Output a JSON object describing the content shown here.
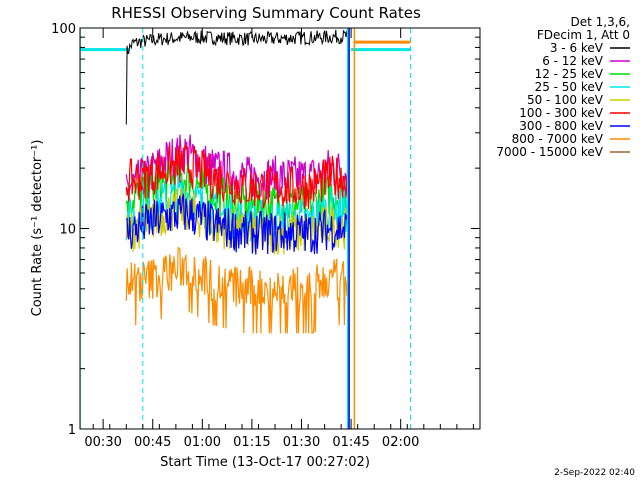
{
  "chart_data": {
    "type": "line",
    "title": "RHESSI Observing Summary Count Rates",
    "xlabel": "Start Time (13-Oct-17 00:27:02)",
    "ylabel": "Count Rate (s⁻¹ detector⁻¹)",
    "ylim": [
      1,
      100
    ],
    "y_scale": "log",
    "xlim_minutes": [
      -4,
      117
    ],
    "x_ticks": [
      {
        "label": "00:30",
        "minute": 3
      },
      {
        "label": "00:45",
        "minute": 18
      },
      {
        "label": "01:00",
        "minute": 33
      },
      {
        "label": "01:15",
        "minute": 48
      },
      {
        "label": "01:30",
        "minute": 63
      },
      {
        "label": "01:45",
        "minute": 78
      },
      {
        "label": "02:00",
        "minute": 93
      }
    ],
    "y_ticks": [
      {
        "label": "1",
        "value": 1
      },
      {
        "label": "10",
        "value": 10
      },
      {
        "label": "100",
        "value": 100
      }
    ],
    "legend": {
      "placement": "outside-right",
      "header": [
        "Det 1,3,6,",
        "FDecim 1, Att 0"
      ]
    },
    "series": [
      {
        "name": "3 - 6 keV",
        "color": "#000000",
        "x": [
          10,
          12,
          20,
          30,
          40,
          50,
          60,
          70,
          77
        ],
        "y": [
          75,
          84,
          88,
          90,
          89,
          88,
          89,
          90,
          91
        ]
      },
      {
        "name": "6 - 12 keV",
        "color": "#cc00cc",
        "x": [
          10,
          16,
          22,
          28,
          36,
          46,
          56,
          66,
          72,
          77
        ],
        "y": [
          16,
          18,
          22,
          24,
          20,
          18,
          18,
          18,
          20,
          19
        ]
      },
      {
        "name": "12 - 25 keV",
        "color": "#00dd00",
        "x": [
          10,
          16,
          22,
          28,
          36,
          46,
          56,
          66,
          72,
          77
        ],
        "y": [
          14,
          15,
          17,
          18,
          15,
          13,
          13,
          13,
          15,
          14
        ]
      },
      {
        "name": "25 - 50 keV",
        "color": "#00e5e5",
        "x": [
          10,
          16,
          22,
          28,
          36,
          46,
          56,
          66,
          72,
          77
        ],
        "y": [
          11,
          12,
          14,
          15,
          12,
          11,
          11,
          11,
          13,
          12
        ]
      },
      {
        "name": "50 - 100 keV",
        "color": "#cccc00",
        "x": [
          10,
          16,
          22,
          28,
          36,
          46,
          56,
          66,
          72,
          77
        ],
        "y": [
          9.5,
          10.5,
          12,
          12.5,
          10.5,
          9.5,
          9.5,
          9.5,
          10.5,
          10
        ]
      },
      {
        "name": "100 - 300 keV",
        "color": "#ff0000",
        "x": [
          10,
          16,
          22,
          28,
          36,
          46,
          56,
          66,
          72,
          77
        ],
        "y": [
          17,
          18,
          20,
          21,
          18,
          16,
          16,
          16,
          18,
          18
        ]
      },
      {
        "name": "300 - 800 keV",
        "color": "#0000ff",
        "x": [
          10,
          16,
          22,
          28,
          36,
          46,
          56,
          66,
          72,
          77
        ],
        "y": [
          9.5,
          10.5,
          11.5,
          12,
          10.5,
          9.5,
          9.5,
          9.5,
          10,
          10
        ]
      },
      {
        "name": "800 - 7000 keV",
        "color": "#ff8c00",
        "x": [
          10,
          16,
          22,
          28,
          36,
          46,
          56,
          66,
          72,
          77
        ],
        "y": [
          5.5,
          5.5,
          6,
          6.5,
          5.5,
          5,
          5,
          5,
          5.5,
          5.5
        ]
      },
      {
        "name": "7000 - 15000 keV",
        "color": "#996633",
        "x": [],
        "y": []
      }
    ],
    "markers": [
      {
        "kind": "solid",
        "color": "#00e5e5",
        "minute": -4
      },
      {
        "kind": "dashed",
        "color": "#00e5e5",
        "minute": 15
      },
      {
        "kind": "solid",
        "color": "#00e5e5",
        "minute": 77
      },
      {
        "kind": "solid",
        "color": "#0000ff",
        "minute": 77.4
      },
      {
        "kind": "solid",
        "color": "#ff8c00",
        "minute": 79
      },
      {
        "kind": "dashed",
        "color": "#00e5e5",
        "minute": 96
      }
    ],
    "flag_bars": [
      {
        "color": "#00e5e5",
        "value": 78,
        "from": -4,
        "to": 11
      },
      {
        "color": "#00e5e5",
        "value": 78,
        "from": 78,
        "to": 96
      },
      {
        "color": "#ff8c00",
        "value": 85,
        "from": 79,
        "to": 96
      }
    ]
  },
  "footer": {
    "date_stamp": "2-Sep-2022 02:40"
  }
}
